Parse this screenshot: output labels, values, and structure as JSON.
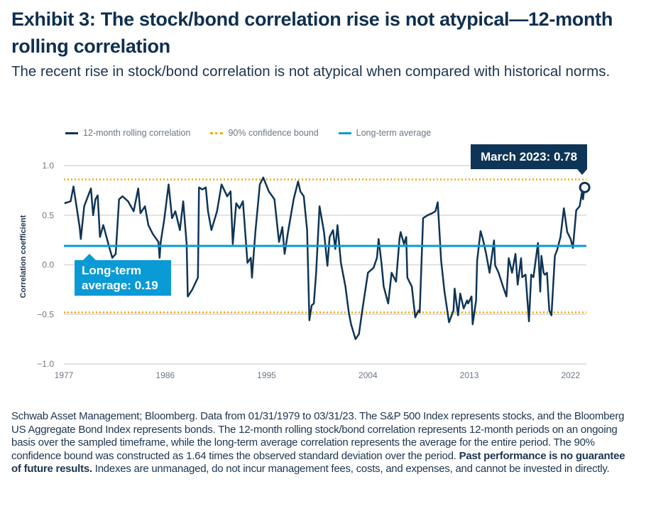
{
  "title": "Exhibit 3: The stock/bond correlation rise is not atypical—12-month rolling correlation",
  "subtitle": "The recent rise in stock/bond correlation is not atypical when compared with historical norms.",
  "footnote": {
    "text1": "Schwab Asset Management; Bloomberg. Data from 01/31/1979 to 03/31/23. The S&P 500 Index represents stocks, and the Bloomberg US Aggregate Bond Index represents bonds. The 12-month rolling stock/bond correlation represents 12-month periods on an ongoing basis over the sampled timeframe, while the long-term average correlation represents the average for the entire period. The 90% confidence bound was constructed as 1.64 times the observed standard deviation over the period. ",
    "bold": "Past performance is no guarantee of future results.",
    "text2": " Indexes are unmanaged, do not incur management fees, costs, and expenses, and cannot be invested in directly."
  },
  "chart_data": {
    "type": "line",
    "title": "",
    "xlabel": "",
    "ylabel": "Correlation coefficient",
    "xlim": [
      1977,
      2023.4
    ],
    "ylim": [
      -1.0,
      1.0
    ],
    "x_ticks": [
      "1977",
      "1986",
      "1995",
      "2004",
      "2013",
      "2022"
    ],
    "x_tick_values": [
      1977,
      1986,
      1995,
      2004,
      2013,
      2022
    ],
    "y_ticks": [
      "1.0",
      "0.5",
      "0.0",
      "−0.5",
      "−1.0"
    ],
    "y_tick_values": [
      1.0,
      0.5,
      0.0,
      -0.5,
      -1.0
    ],
    "grid": "horizontal",
    "legend_position": "top-left",
    "legend": [
      "12-month rolling correlation",
      "90% confidence bound",
      "Long-term average"
    ],
    "colors": {
      "series": "#0f3556",
      "confidence": "#f5a800",
      "average": "#0a9ad6",
      "grid": "#d9d9d9"
    },
    "confidence_bounds": [
      0.86,
      -0.48
    ],
    "long_term_average": 0.19,
    "annotations": {
      "last": "March 2023: 0.78",
      "average_line1": "Long-term",
      "average_line2": "average: 0.19"
    },
    "series": [
      {
        "name": "12-month rolling correlation",
        "points": [
          [
            1977.05,
            0.62
          ],
          [
            1977.6,
            0.64
          ],
          [
            1977.85,
            0.79
          ],
          [
            1978.4,
            0.38
          ],
          [
            1978.5,
            0.26
          ],
          [
            1978.8,
            0.59
          ],
          [
            1979.4,
            0.77
          ],
          [
            1979.6,
            0.5
          ],
          [
            1979.8,
            0.66
          ],
          [
            1980.0,
            0.7
          ],
          [
            1980.2,
            0.28
          ],
          [
            1980.5,
            0.4
          ],
          [
            1981.0,
            0.19
          ],
          [
            1981.3,
            0.07
          ],
          [
            1981.6,
            0.11
          ],
          [
            1981.9,
            0.66
          ],
          [
            1982.2,
            0.69
          ],
          [
            1982.7,
            0.64
          ],
          [
            1983.2,
            0.54
          ],
          [
            1983.6,
            0.77
          ],
          [
            1983.8,
            0.52
          ],
          [
            1984.2,
            0.59
          ],
          [
            1984.5,
            0.4
          ],
          [
            1984.9,
            0.31
          ],
          [
            1985.4,
            0.23
          ],
          [
            1985.5,
            0.07
          ],
          [
            1985.6,
            0.23
          ],
          [
            1985.9,
            0.45
          ],
          [
            1986.3,
            0.81
          ],
          [
            1986.6,
            0.47
          ],
          [
            1986.9,
            0.54
          ],
          [
            1987.3,
            0.35
          ],
          [
            1987.6,
            0.64
          ],
          [
            1987.9,
            0.21
          ],
          [
            1988.0,
            -0.32
          ],
          [
            1988.4,
            -0.25
          ],
          [
            1988.9,
            -0.13
          ],
          [
            1989.0,
            0.78
          ],
          [
            1989.3,
            0.76
          ],
          [
            1989.6,
            0.78
          ],
          [
            1989.8,
            0.54
          ],
          [
            1990.1,
            0.35
          ],
          [
            1990.6,
            0.54
          ],
          [
            1991.0,
            0.81
          ],
          [
            1991.5,
            0.69
          ],
          [
            1991.8,
            0.74
          ],
          [
            1992.0,
            0.21
          ],
          [
            1992.3,
            0.62
          ],
          [
            1992.6,
            0.57
          ],
          [
            1992.9,
            0.64
          ],
          [
            1993.3,
            0.02
          ],
          [
            1993.6,
            0.07
          ],
          [
            1993.7,
            -0.13
          ],
          [
            1994.0,
            0.33
          ],
          [
            1994.4,
            0.81
          ],
          [
            1994.7,
            0.88
          ],
          [
            1995.2,
            0.74
          ],
          [
            1995.7,
            0.66
          ],
          [
            1996.1,
            0.23
          ],
          [
            1996.4,
            0.38
          ],
          [
            1996.6,
            0.11
          ],
          [
            1996.9,
            0.33
          ],
          [
            1997.4,
            0.66
          ],
          [
            1997.8,
            0.84
          ],
          [
            1998.0,
            0.74
          ],
          [
            1998.3,
            0.69
          ],
          [
            1998.6,
            0.35
          ],
          [
            1998.8,
            -0.56
          ],
          [
            1999.0,
            -0.41
          ],
          [
            1999.2,
            -0.39
          ],
          [
            1999.4,
            -0.08
          ],
          [
            1999.7,
            0.59
          ],
          [
            2000.1,
            0.33
          ],
          [
            2000.4,
            -0.01
          ],
          [
            2000.6,
            0.28
          ],
          [
            2000.9,
            0.35
          ],
          [
            2001.1,
            0.16
          ],
          [
            2001.3,
            0.4
          ],
          [
            2001.6,
            0.02
          ],
          [
            2002.0,
            -0.22
          ],
          [
            2002.3,
            -0.48
          ],
          [
            2002.5,
            -0.6
          ],
          [
            2002.9,
            -0.75
          ],
          [
            2003.2,
            -0.7
          ],
          [
            2003.5,
            -0.46
          ],
          [
            2004.0,
            -0.08
          ],
          [
            2004.5,
            -0.03
          ],
          [
            2004.8,
            0.07
          ],
          [
            2004.95,
            0.26
          ],
          [
            2005.2,
            0.02
          ],
          [
            2005.4,
            -0.22
          ],
          [
            2005.8,
            -0.39
          ],
          [
            2006.1,
            -0.08
          ],
          [
            2006.5,
            -0.17
          ],
          [
            2006.8,
            0.26
          ],
          [
            2006.9,
            0.33
          ],
          [
            2007.2,
            0.21
          ],
          [
            2007.4,
            0.28
          ],
          [
            2007.5,
            -0.13
          ],
          [
            2007.9,
            -0.22
          ],
          [
            2008.2,
            -0.53
          ],
          [
            2008.5,
            -0.46
          ],
          [
            2008.6,
            -0.48
          ],
          [
            2008.9,
            0.47
          ],
          [
            2009.3,
            0.5
          ],
          [
            2009.7,
            0.52
          ],
          [
            2010.0,
            0.54
          ],
          [
            2010.2,
            0.63
          ],
          [
            2010.5,
            0.04
          ],
          [
            2010.8,
            -0.27
          ],
          [
            2011.2,
            -0.58
          ],
          [
            2011.6,
            -0.46
          ],
          [
            2011.7,
            -0.24
          ],
          [
            2012.0,
            -0.51
          ],
          [
            2012.2,
            -0.29
          ],
          [
            2012.5,
            -0.44
          ],
          [
            2012.8,
            -0.36
          ],
          [
            2012.9,
            -0.39
          ],
          [
            2013.2,
            -0.32
          ],
          [
            2013.3,
            -0.6
          ],
          [
            2013.6,
            -0.36
          ],
          [
            2013.7,
            0.04
          ],
          [
            2014.0,
            0.34
          ],
          [
            2014.2,
            0.26
          ],
          [
            2014.5,
            0.11
          ],
          [
            2014.8,
            -0.08
          ],
          [
            2015.2,
            0.245
          ],
          [
            2015.3,
            -0.006
          ],
          [
            2015.6,
            -0.08
          ],
          [
            2016.0,
            -0.22
          ],
          [
            2016.3,
            -0.32
          ],
          [
            2016.5,
            0.066
          ],
          [
            2016.8,
            -0.08
          ],
          [
            2017.1,
            0.11
          ],
          [
            2017.3,
            -0.2
          ],
          [
            2017.6,
            0.066
          ],
          [
            2017.7,
            -0.125
          ],
          [
            2018.0,
            -0.1
          ],
          [
            2018.3,
            -0.57
          ],
          [
            2018.5,
            -0.1
          ],
          [
            2018.7,
            -0.125
          ],
          [
            2019.1,
            0.22
          ],
          [
            2019.3,
            -0.27
          ],
          [
            2019.4,
            0.09
          ],
          [
            2019.6,
            -0.08
          ],
          [
            2019.7,
            -0.1
          ],
          [
            2019.9,
            -0.08
          ],
          [
            2020.1,
            -0.46
          ],
          [
            2020.3,
            -0.51
          ],
          [
            2020.6,
            0.09
          ],
          [
            2020.8,
            0.15
          ],
          [
            2021.1,
            0.28
          ],
          [
            2021.4,
            0.57
          ],
          [
            2021.7,
            0.33
          ],
          [
            2022.0,
            0.26
          ],
          [
            2022.2,
            0.17
          ],
          [
            2022.5,
            0.55
          ],
          [
            2022.8,
            0.59
          ],
          [
            2023.0,
            0.73
          ],
          [
            2023.1,
            0.66
          ],
          [
            2023.2,
            0.75
          ],
          [
            2023.25,
            0.78
          ]
        ]
      }
    ]
  }
}
